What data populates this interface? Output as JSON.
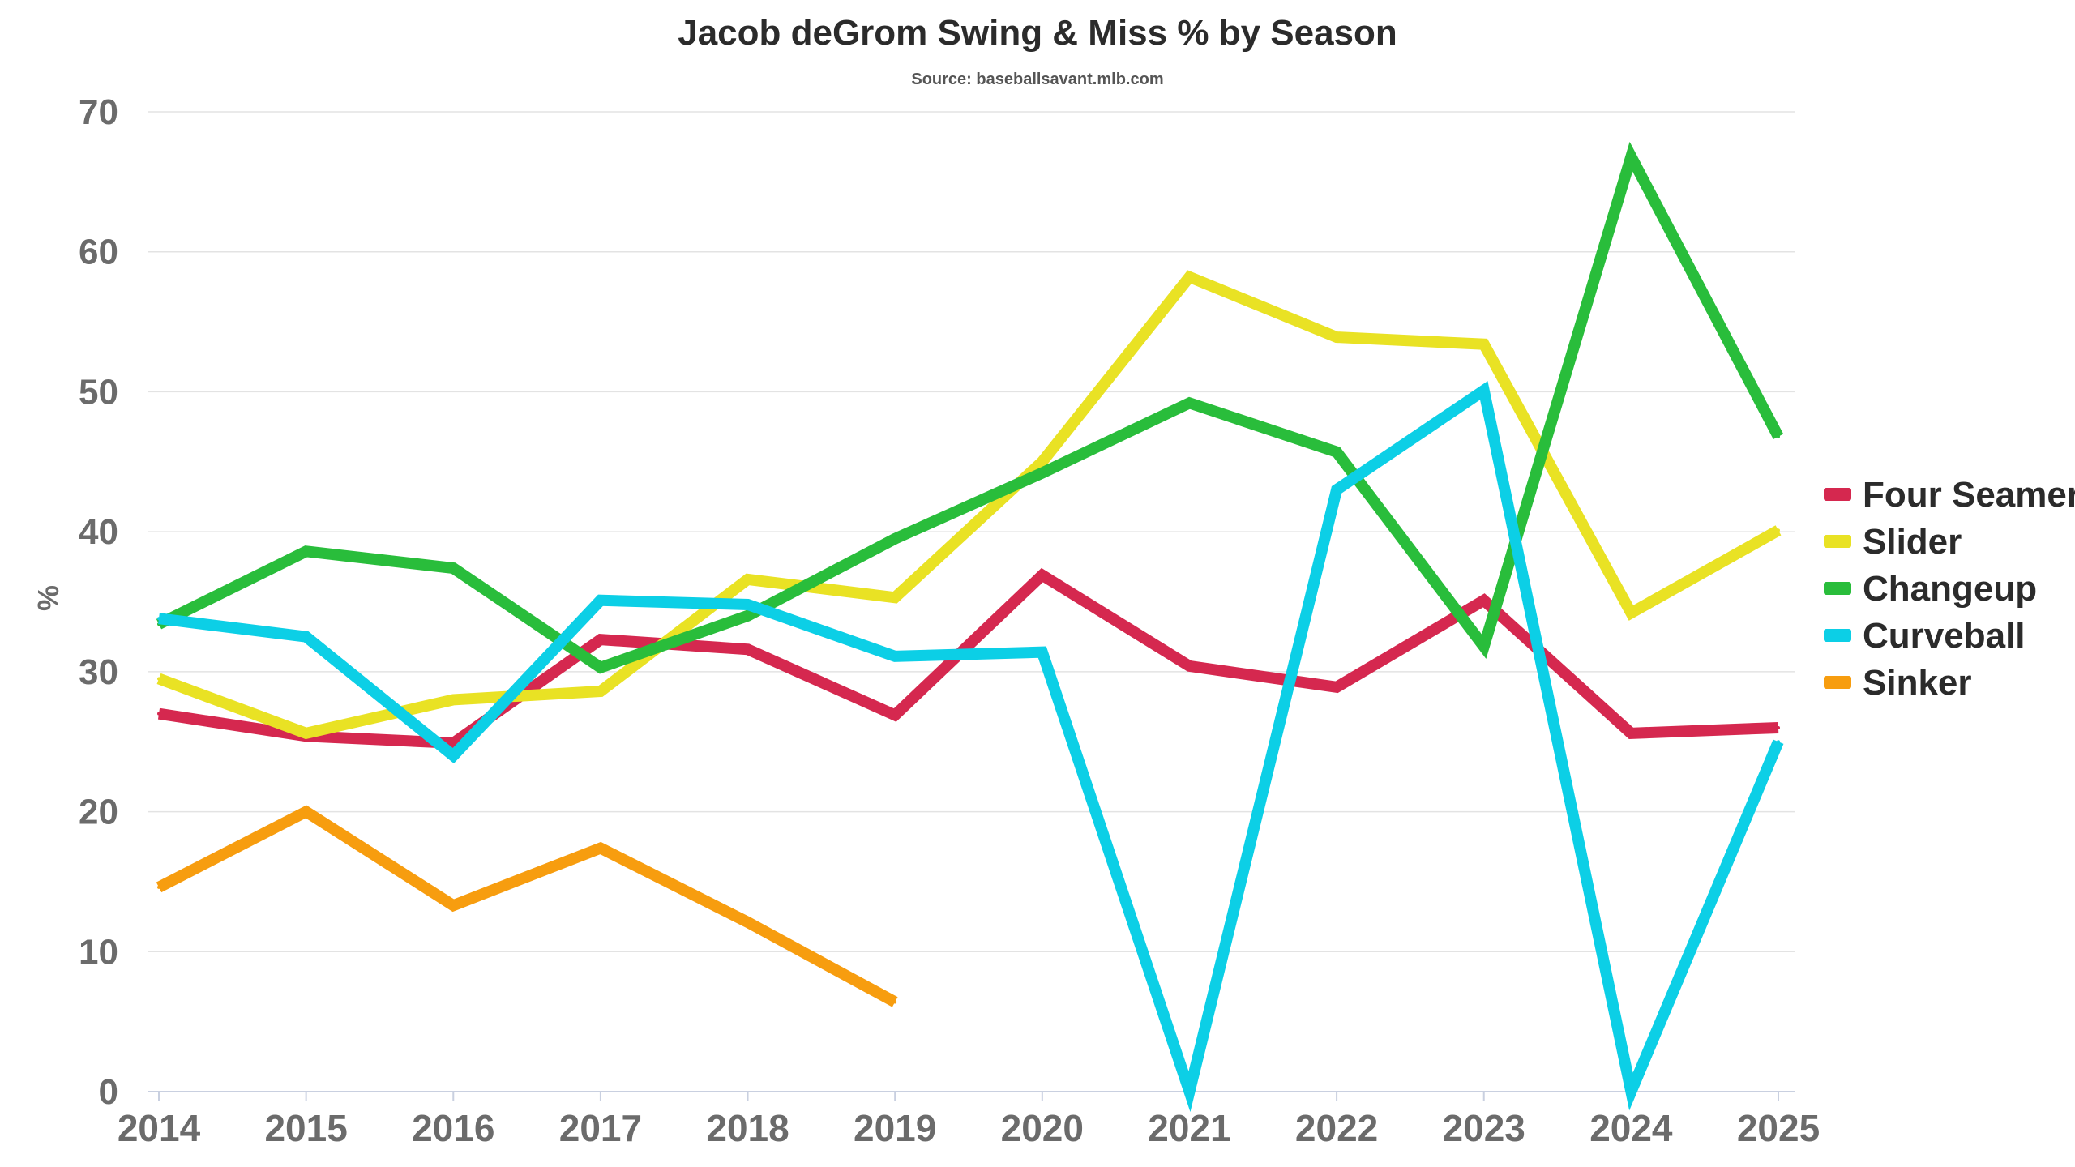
{
  "chart_data": {
    "type": "line",
    "title": "Jacob deGrom Swing & Miss % by Season",
    "subtitle": "Source: baseballsavant.mlb.com",
    "xlabel": "",
    "ylabel": "%",
    "ylim": [
      0,
      70
    ],
    "yticks": [
      0,
      10,
      20,
      30,
      40,
      50,
      60,
      70
    ],
    "grid": true,
    "legend_position": "right",
    "categories": [
      "2014",
      "2015",
      "2016",
      "2017",
      "2018",
      "2019",
      "2020",
      "2021",
      "2022",
      "2023",
      "2024",
      "2025"
    ],
    "series": [
      {
        "name": "Four Seamer",
        "color": "#d5284f",
        "values": [
          27.0,
          25.4,
          24.9,
          32.3,
          31.6,
          26.9,
          36.9,
          30.4,
          28.9,
          35.1,
          25.6,
          26.0
        ]
      },
      {
        "name": "Slider",
        "color": "#e9e224",
        "values": [
          29.5,
          25.6,
          28.0,
          28.6,
          36.6,
          35.3,
          45.0,
          58.2,
          53.9,
          53.4,
          34.2,
          40.1
        ]
      },
      {
        "name": "Changeup",
        "color": "#29bd3b",
        "values": [
          33.4,
          38.6,
          37.4,
          30.3,
          34.0,
          39.5,
          44.2,
          49.2,
          45.7,
          31.8,
          66.8,
          46.8
        ]
      },
      {
        "name": "Curveball",
        "color": "#0ccfe6",
        "values": [
          33.8,
          32.5,
          24.0,
          35.1,
          34.8,
          31.1,
          31.4,
          0.0,
          43.0,
          50.1,
          0.0,
          25.0
        ]
      },
      {
        "name": "Sinker",
        "color": "#f79d0f",
        "values": [
          14.6,
          20.0,
          13.3,
          17.4,
          12.1,
          6.4,
          null,
          null,
          null,
          null,
          null,
          null
        ]
      }
    ]
  }
}
